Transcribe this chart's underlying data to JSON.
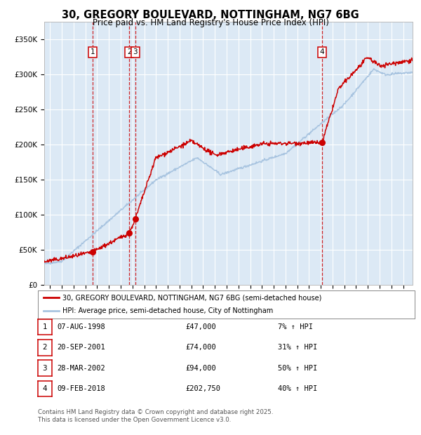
{
  "title_line1": "30, GREGORY BOULEVARD, NOTTINGHAM, NG7 6BG",
  "title_line2": "Price paid vs. HM Land Registry's House Price Index (HPI)",
  "bg_color": "#ffffff",
  "plot_bg": "#dce9f5",
  "grid_color": "#ffffff",
  "line1_color": "#cc0000",
  "line2_color": "#a8c4e0",
  "transactions": [
    {
      "num": 1,
      "date_str": "07-AUG-1998",
      "price": 47000,
      "hpi_pct": "7% ↑ HPI",
      "date_x": 1998.6
    },
    {
      "num": 2,
      "date_str": "20-SEP-2001",
      "price": 74000,
      "hpi_pct": "31% ↑ HPI",
      "date_x": 2001.72
    },
    {
      "num": 3,
      "date_str": "28-MAR-2002",
      "price": 94000,
      "hpi_pct": "50% ↑ HPI",
      "date_x": 2002.24
    },
    {
      "num": 4,
      "date_str": "09-FEB-2018",
      "price": 202750,
      "hpi_pct": "40% ↑ HPI",
      "date_x": 2018.11
    }
  ],
  "trans_prices": [
    47000,
    74000,
    94000,
    202750
  ],
  "legend_line1": "30, GREGORY BOULEVARD, NOTTINGHAM, NG7 6BG (semi-detached house)",
  "legend_line2": "HPI: Average price, semi-detached house, City of Nottingham",
  "footer": "Contains HM Land Registry data © Crown copyright and database right 2025.\nThis data is licensed under the Open Government Licence v3.0.",
  "ylim": [
    0,
    375000
  ],
  "yticks": [
    0,
    50000,
    100000,
    150000,
    200000,
    250000,
    300000,
    350000
  ],
  "xlim_start": 1994.5,
  "xlim_end": 2025.8
}
